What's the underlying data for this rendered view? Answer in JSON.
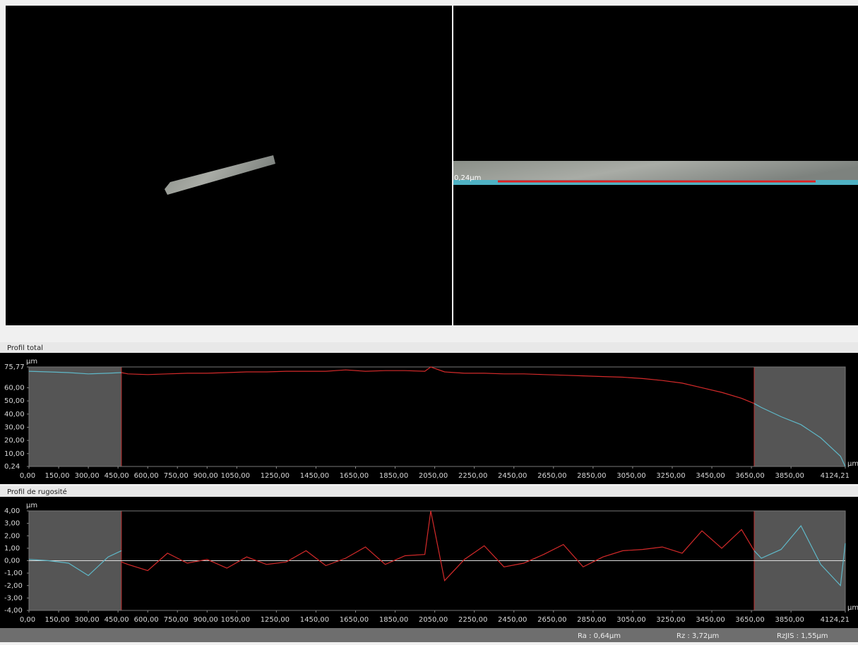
{
  "views": {
    "right_label": "0,24µm"
  },
  "chart_data": [
    {
      "type": "line",
      "title": "Profil total",
      "y_label": "µm",
      "x_label": "µm",
      "x": [
        0,
        100,
        200,
        300,
        400,
        467,
        500,
        600,
        700,
        800,
        900,
        1000,
        1100,
        1200,
        1300,
        1400,
        1500,
        1600,
        1700,
        1800,
        1900,
        2000,
        2030,
        2100,
        2200,
        2300,
        2400,
        2500,
        2600,
        2700,
        2800,
        2900,
        3000,
        3100,
        3200,
        3300,
        3400,
        3500,
        3600,
        3664,
        3700,
        3800,
        3900,
        4000,
        4100,
        4124.21
      ],
      "series": [
        {
          "color": "#5fb8c8",
          "values": [
            72.5,
            72,
            71.5,
            70.5,
            71,
            71.5,
            null,
            null,
            null,
            null,
            null,
            null,
            null,
            null,
            null,
            null,
            null,
            null,
            null,
            null,
            null,
            null,
            null,
            null,
            null,
            null,
            null,
            null,
            null,
            null,
            null,
            null,
            null,
            null,
            null,
            null,
            null,
            null,
            null,
            null,
            null,
            null,
            null,
            null,
            null,
            null
          ]
        },
        {
          "color": "#d42a2a",
          "values": [
            null,
            null,
            null,
            null,
            null,
            71.5,
            70.5,
            70,
            70.5,
            71,
            71,
            71.5,
            72,
            72,
            72.5,
            72.5,
            72.5,
            73.5,
            72.5,
            73,
            73,
            72.5,
            75.77,
            72,
            71,
            71,
            70.5,
            70.5,
            70,
            69.5,
            69,
            68.5,
            68,
            67,
            65.5,
            63.5,
            60,
            56.5,
            52,
            48,
            null,
            null,
            null,
            null,
            null,
            null
          ]
        },
        {
          "color": "#5fb8c8",
          "values": [
            null,
            null,
            null,
            null,
            null,
            null,
            null,
            null,
            null,
            null,
            null,
            null,
            null,
            null,
            null,
            null,
            null,
            null,
            null,
            null,
            null,
            null,
            null,
            null,
            null,
            null,
            null,
            null,
            null,
            null,
            null,
            null,
            null,
            null,
            null,
            null,
            null,
            null,
            null,
            48,
            45,
            38,
            32,
            22,
            8,
            0.24
          ]
        }
      ],
      "xlim": [
        0,
        4124.21
      ],
      "ylim": [
        0.24,
        75.77
      ],
      "evaluation_range": [
        467,
        3664
      ],
      "xticks": [
        {
          "value": 0,
          "label": "0,00"
        },
        {
          "value": 150,
          "label": "150,00"
        },
        {
          "value": 300,
          "label": "300,00"
        },
        {
          "value": 450,
          "label": "450,00"
        },
        {
          "value": 600,
          "label": "600,00"
        },
        {
          "value": 750,
          "label": "750,00"
        },
        {
          "value": 900,
          "label": "900,00"
        },
        {
          "value": 1050,
          "label": "1050,00"
        },
        {
          "value": 1250,
          "label": "1250,00"
        },
        {
          "value": 1450,
          "label": "1450,00"
        },
        {
          "value": 1650,
          "label": "1650,00"
        },
        {
          "value": 1850,
          "label": "1850,00"
        },
        {
          "value": 2050,
          "label": "2050,00"
        },
        {
          "value": 2250,
          "label": "2250,00"
        },
        {
          "value": 2450,
          "label": "2450,00"
        },
        {
          "value": 2650,
          "label": "2650,00"
        },
        {
          "value": 2850,
          "label": "2850,00"
        },
        {
          "value": 3050,
          "label": "3050,00"
        },
        {
          "value": 3250,
          "label": "3250,00"
        },
        {
          "value": 3450,
          "label": "3450,00"
        },
        {
          "value": 3650,
          "label": "3650,00"
        },
        {
          "value": 3850,
          "label": "3850,00"
        },
        {
          "value": 4124.21,
          "label": "4124,21"
        }
      ],
      "yticks": [
        {
          "value": 0.24,
          "label": "0,24"
        },
        {
          "value": 10,
          "label": "10,00"
        },
        {
          "value": 20,
          "label": "20,00"
        },
        {
          "value": 30,
          "label": "30,00"
        },
        {
          "value": 40,
          "label": "40,00"
        },
        {
          "value": 50,
          "label": "50,00"
        },
        {
          "value": 60,
          "label": "60,00"
        },
        {
          "value": 75.77,
          "label": "75,77"
        }
      ]
    },
    {
      "type": "line",
      "title": "Profil de rugosité",
      "y_label": "µm",
      "x_label": "µm",
      "x": [
        0,
        100,
        200,
        300,
        400,
        467,
        500,
        600,
        700,
        800,
        900,
        1000,
        1100,
        1200,
        1300,
        1400,
        1500,
        1600,
        1700,
        1800,
        1900,
        2000,
        2030,
        2100,
        2200,
        2300,
        2400,
        2500,
        2600,
        2700,
        2800,
        2900,
        3000,
        3100,
        3200,
        3300,
        3400,
        3500,
        3600,
        3664,
        3700,
        3800,
        3900,
        4000,
        4100,
        4124.21
      ],
      "series": [
        {
          "color": "#5fb8c8",
          "values": [
            0.1,
            0,
            -0.2,
            -1.2,
            0.3,
            0.8,
            null,
            null,
            null,
            null,
            null,
            null,
            null,
            null,
            null,
            null,
            null,
            null,
            null,
            null,
            null,
            null,
            null,
            null,
            null,
            null,
            null,
            null,
            null,
            null,
            null,
            null,
            null,
            null,
            null,
            null,
            null,
            null,
            null,
            null,
            null,
            null,
            null,
            null,
            null,
            null
          ]
        },
        {
          "color": "#d42a2a",
          "values": [
            null,
            null,
            null,
            null,
            null,
            -0.1,
            -0.3,
            -0.8,
            0.6,
            -0.2,
            0.1,
            -0.6,
            0.3,
            -0.3,
            -0.1,
            0.8,
            -0.4,
            0.2,
            1.1,
            -0.3,
            0.4,
            0.5,
            4.0,
            -1.6,
            0.1,
            1.2,
            -0.5,
            -0.2,
            0.5,
            1.3,
            -0.5,
            0.3,
            0.8,
            0.9,
            1.1,
            0.6,
            2.4,
            1.0,
            2.5,
            0.8,
            null,
            null,
            null,
            null,
            null,
            null
          ]
        },
        {
          "color": "#5fb8c8",
          "values": [
            null,
            null,
            null,
            null,
            null,
            null,
            null,
            null,
            null,
            null,
            null,
            null,
            null,
            null,
            null,
            null,
            null,
            null,
            null,
            null,
            null,
            null,
            null,
            null,
            null,
            null,
            null,
            null,
            null,
            null,
            null,
            null,
            null,
            null,
            null,
            null,
            null,
            null,
            null,
            0.8,
            0.2,
            0.9,
            2.8,
            -0.3,
            -2.0,
            1.4
          ]
        }
      ],
      "xlim": [
        0,
        4124.21
      ],
      "ylim": [
        -4,
        4
      ],
      "evaluation_range": [
        467,
        3664
      ],
      "reference_line": 0,
      "xticks": [
        {
          "value": 0,
          "label": "0,00"
        },
        {
          "value": 150,
          "label": "150,00"
        },
        {
          "value": 300,
          "label": "300,00"
        },
        {
          "value": 450,
          "label": "450,00"
        },
        {
          "value": 600,
          "label": "600,00"
        },
        {
          "value": 750,
          "label": "750,00"
        },
        {
          "value": 900,
          "label": "900,00"
        },
        {
          "value": 1050,
          "label": "1050,00"
        },
        {
          "value": 1250,
          "label": "1250,00"
        },
        {
          "value": 1450,
          "label": "1450,00"
        },
        {
          "value": 1650,
          "label": "1650,00"
        },
        {
          "value": 1850,
          "label": "1850,00"
        },
        {
          "value": 2050,
          "label": "2050,00"
        },
        {
          "value": 2250,
          "label": "2250,00"
        },
        {
          "value": 2450,
          "label": "2450,00"
        },
        {
          "value": 2650,
          "label": "2650,00"
        },
        {
          "value": 2850,
          "label": "2850,00"
        },
        {
          "value": 3050,
          "label": "3050,00"
        },
        {
          "value": 3250,
          "label": "3250,00"
        },
        {
          "value": 3450,
          "label": "3450,00"
        },
        {
          "value": 3650,
          "label": "3650,00"
        },
        {
          "value": 3850,
          "label": "3850,00"
        },
        {
          "value": 4124.21,
          "label": "4124,21"
        }
      ],
      "yticks": [
        {
          "value": -4,
          "label": "-4,00"
        },
        {
          "value": -3,
          "label": "-3,00"
        },
        {
          "value": -2,
          "label": "-2,00"
        },
        {
          "value": -1,
          "label": "-1,00"
        },
        {
          "value": 0,
          "label": "0,00"
        },
        {
          "value": 1,
          "label": "1,00"
        },
        {
          "value": 2,
          "label": "2,00"
        },
        {
          "value": 3,
          "label": "3,00"
        },
        {
          "value": 4,
          "label": "4,00"
        }
      ]
    }
  ],
  "status_bar": {
    "ra": "Ra : 0,64µm",
    "rz": "Rz : 3,72µm",
    "rzjis": "RzJIS : 1,55µm"
  }
}
